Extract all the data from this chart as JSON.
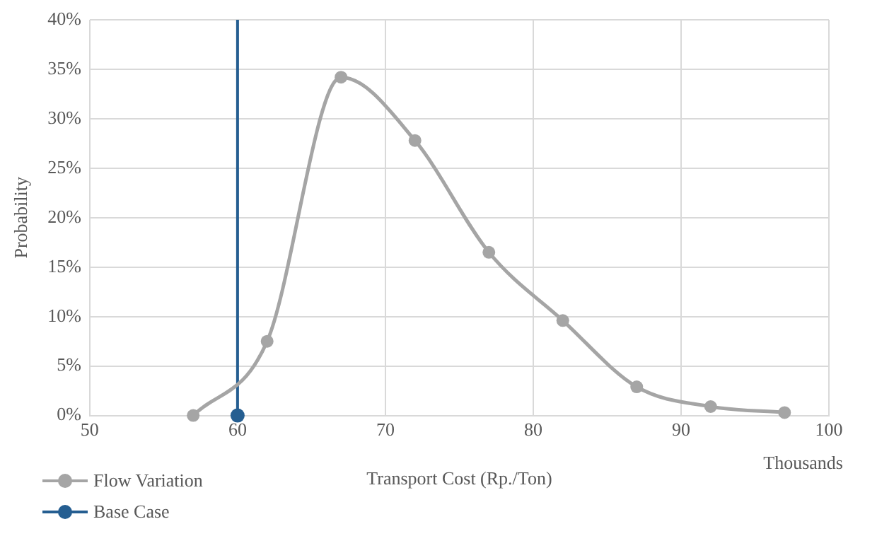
{
  "chart_data": {
    "type": "line",
    "xlabel": "Transport Cost (Rp./Ton)",
    "ylabel": "Probability",
    "annotations": [
      "Thousands"
    ],
    "xlim": [
      50,
      100
    ],
    "xticks": [
      50,
      60,
      70,
      80,
      90,
      100
    ],
    "ylim": [
      0,
      40
    ],
    "yticks": [
      {
        "value": 0,
        "label": "0%"
      },
      {
        "value": 5,
        "label": "5%"
      },
      {
        "value": 10,
        "label": "10%"
      },
      {
        "value": 15,
        "label": "15%"
      },
      {
        "value": 20,
        "label": "20%"
      },
      {
        "value": 25,
        "label": "25%"
      },
      {
        "value": 30,
        "label": "30%"
      },
      {
        "value": 35,
        "label": "35%"
      },
      {
        "value": 40,
        "label": "40%"
      }
    ],
    "grid": true,
    "legend": "bottom left",
    "marker": "circle",
    "series": [
      {
        "name": "Flow Variation",
        "color": "#a5a5a5",
        "x": [
          57,
          62,
          67,
          72,
          77,
          82,
          87,
          92,
          97
        ],
        "values": [
          0,
          7.5,
          34.2,
          27.8,
          16.5,
          9.6,
          2.9,
          0.9,
          0.3
        ]
      },
      {
        "name": "Base Case",
        "color": "#255e91",
        "x": [
          60,
          60
        ],
        "values": [
          0,
          40
        ]
      }
    ]
  }
}
